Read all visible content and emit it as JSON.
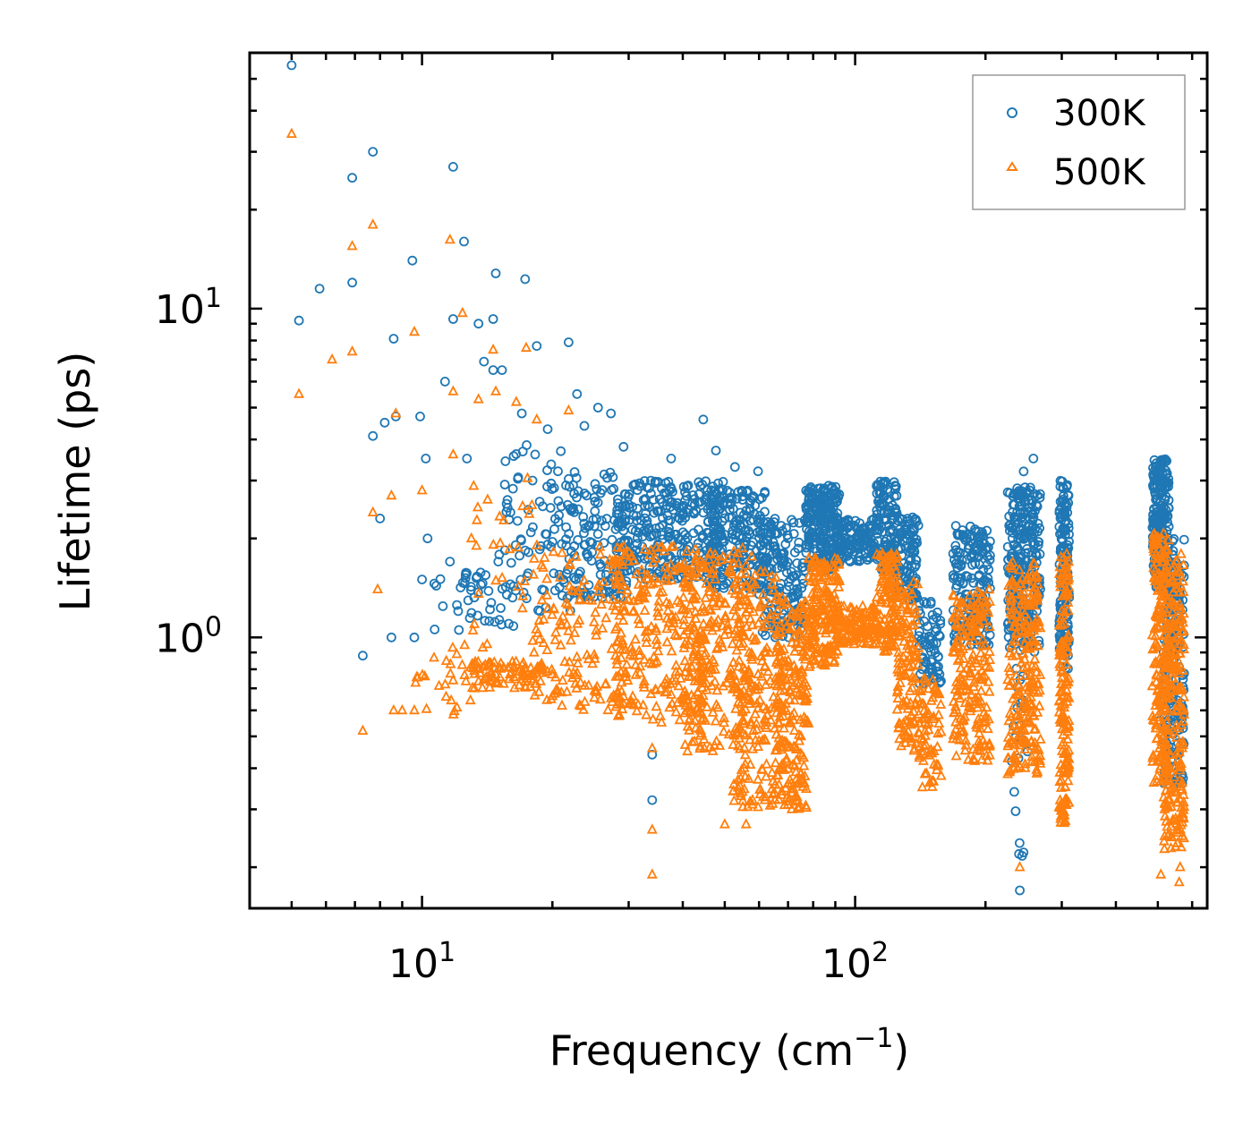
{
  "chart_data": {
    "type": "scatter",
    "title": "",
    "xlabel": "Frequency (cm",
    "xlabel_sup": "−1",
    "xlabel_end": ")",
    "ylabel": "Lifetime (ps)",
    "xscale": "log",
    "yscale": "log",
    "xlim": [
      4,
      650
    ],
    "ylim": [
      0.15,
      60
    ],
    "x_ticks": [
      {
        "value": 10,
        "base": "10",
        "exp": "1"
      },
      {
        "value": 100,
        "base": "10",
        "exp": "2"
      }
    ],
    "y_ticks": [
      {
        "value": 1,
        "base": "10",
        "exp": "0"
      },
      {
        "value": 10,
        "base": "10",
        "exp": "1"
      }
    ],
    "legend_position": "top-right",
    "series": [
      {
        "name": "300K",
        "marker": "circle",
        "color": "#1f77b4",
        "points": [
          [
            5.0,
            55.0
          ],
          [
            5.2,
            9.2
          ],
          [
            5.8,
            11.5
          ],
          [
            6.9,
            25.0
          ],
          [
            6.9,
            12.0
          ],
          [
            7.7,
            30.0
          ],
          [
            7.7,
            4.1
          ],
          [
            8.0,
            2.3
          ],
          [
            8.2,
            4.5
          ],
          [
            8.6,
            8.1
          ],
          [
            8.7,
            4.7
          ],
          [
            9.5,
            14.0
          ],
          [
            9.9,
            4.7
          ],
          [
            10.0,
            1.5
          ],
          [
            10.2,
            3.5
          ],
          [
            10.3,
            2.0
          ],
          [
            11.8,
            27.0
          ],
          [
            11.8,
            9.3
          ],
          [
            12.5,
            16.0
          ],
          [
            13.5,
            9.0
          ],
          [
            14.6,
            9.3
          ],
          [
            14.6,
            6.5
          ],
          [
            14.8,
            12.8
          ],
          [
            15.3,
            6.5
          ],
          [
            17.3,
            12.3
          ],
          [
            18.4,
            7.7
          ],
          [
            21.8,
            7.9
          ],
          [
            7.3,
            0.88
          ],
          [
            8.5,
            1.0
          ],
          [
            9.6,
            1.0
          ],
          [
            11.3,
            6.0
          ],
          [
            11.6,
            1.7
          ],
          [
            12.7,
            3.5
          ],
          [
            13.9,
            6.9
          ],
          [
            15.0,
            1.7
          ],
          [
            16.0,
            2.4
          ],
          [
            17.0,
            4.8
          ],
          [
            18.0,
            3.0
          ],
          [
            19.5,
            4.3
          ],
          [
            20.6,
            3.2
          ],
          [
            22.8,
            5.5
          ],
          [
            23.7,
            4.4
          ],
          [
            25.5,
            5.0
          ],
          [
            27.3,
            4.8
          ],
          [
            29.2,
            3.8
          ],
          [
            34.0,
            0.44
          ],
          [
            34.0,
            0.32
          ],
          [
            37.6,
            3.5
          ],
          [
            44.6,
            4.6
          ],
          [
            47.7,
            3.7
          ],
          [
            52.8,
            3.3
          ],
          [
            59.7,
            3.2
          ],
          [
            147.0,
            1.08
          ],
          [
            230.0,
            0.42
          ],
          [
            240.0,
            0.17
          ],
          [
            250.0,
            0.45
          ],
          [
            258.0,
            3.5
          ],
          [
            302.0,
            0.55
          ],
          [
            506.0,
            0.56
          ]
        ],
        "bands": [
          {
            "x0": 10.6,
            "x1": 16.5,
            "ylo": 1.05,
            "yhi": 1.6,
            "n": 45
          },
          {
            "x0": 15.0,
            "x1": 22.0,
            "ylo": 1.2,
            "yhi": 4.0,
            "n": 70
          },
          {
            "x0": 20.0,
            "x1": 30.0,
            "ylo": 1.3,
            "yhi": 3.2,
            "n": 140
          },
          {
            "x0": 28.0,
            "x1": 50.0,
            "ylo": 1.5,
            "yhi": 3.0,
            "n": 300
          },
          {
            "x0": 45.0,
            "x1": 62.0,
            "ylo": 1.4,
            "yhi": 2.8,
            "n": 200
          },
          {
            "x0": 60.0,
            "x1": 77.0,
            "ylo": 1.0,
            "yhi": 2.3,
            "n": 180
          },
          {
            "x0": 77.0,
            "x1": 92.0,
            "ylo": 1.6,
            "yhi": 2.9,
            "n": 220
          },
          {
            "x0": 90.0,
            "x1": 112.0,
            "ylo": 1.7,
            "yhi": 2.3,
            "n": 120
          },
          {
            "x0": 112.0,
            "x1": 125.0,
            "ylo": 1.6,
            "yhi": 3.0,
            "n": 120
          },
          {
            "x0": 125.0,
            "x1": 140.0,
            "ylo": 1.3,
            "yhi": 2.4,
            "n": 100
          },
          {
            "x0": 140.0,
            "x1": 158.0,
            "ylo": 0.7,
            "yhi": 1.3,
            "n": 70
          },
          {
            "x0": 168.0,
            "x1": 205.0,
            "ylo": 0.95,
            "yhi": 2.2,
            "n": 180
          },
          {
            "x0": 225.0,
            "x1": 268.0,
            "ylo": 0.9,
            "yhi": 2.9,
            "n": 240
          },
          {
            "x0": 232.0,
            "x1": 246.0,
            "ylo": 0.2,
            "yhi": 3.2,
            "n": 40
          },
          {
            "x0": 296.0,
            "x1": 312.0,
            "ylo": 0.8,
            "yhi": 3.0,
            "n": 160
          },
          {
            "x0": 485.0,
            "x1": 530.0,
            "ylo": 1.4,
            "yhi": 3.5,
            "n": 200
          },
          {
            "x0": 515.0,
            "x1": 575.0,
            "ylo": 0.35,
            "yhi": 2.0,
            "n": 200
          }
        ]
      },
      {
        "name": "500K",
        "marker": "triangle",
        "color": "#ff7f0e",
        "points": [
          [
            5.0,
            34.0
          ],
          [
            5.2,
            5.5
          ],
          [
            6.2,
            7.0
          ],
          [
            6.9,
            15.5
          ],
          [
            6.9,
            7.4
          ],
          [
            7.3,
            0.52
          ],
          [
            7.7,
            2.4
          ],
          [
            7.7,
            18.0
          ],
          [
            7.9,
            1.4
          ],
          [
            8.5,
            2.7
          ],
          [
            8.6,
            0.6
          ],
          [
            8.7,
            4.8
          ],
          [
            9.0,
            0.6
          ],
          [
            9.6,
            0.6
          ],
          [
            9.6,
            8.5
          ],
          [
            10.0,
            2.8
          ],
          [
            11.6,
            16.2
          ],
          [
            11.8,
            3.6
          ],
          [
            11.8,
            5.6
          ],
          [
            12.4,
            9.7
          ],
          [
            13.0,
            2.0
          ],
          [
            13.5,
            5.3
          ],
          [
            14.6,
            7.5
          ],
          [
            14.8,
            5.6
          ],
          [
            16.5,
            5.2
          ],
          [
            17.4,
            7.6
          ],
          [
            18.4,
            4.6
          ],
          [
            21.8,
            4.9
          ],
          [
            34.0,
            0.26
          ],
          [
            34.0,
            0.19
          ],
          [
            34.0,
            0.46
          ],
          [
            41.0,
            0.45
          ],
          [
            50.0,
            0.27
          ],
          [
            56.0,
            0.27
          ],
          [
            143.0,
            0.35
          ],
          [
            240.0,
            0.2
          ],
          [
            508.0,
            0.19
          ],
          [
            560.0,
            0.18
          ],
          [
            563.0,
            0.2
          ]
        ],
        "bands": [
          {
            "x0": 9.6,
            "x1": 13.0,
            "ylo": 0.58,
            "yhi": 0.95,
            "n": 25
          },
          {
            "x0": 12.8,
            "x1": 19.0,
            "ylo": 0.7,
            "yhi": 0.85,
            "n": 90
          },
          {
            "x0": 13.0,
            "x1": 19.0,
            "ylo": 0.9,
            "yhi": 3.2,
            "n": 30
          },
          {
            "x0": 18.0,
            "x1": 30.0,
            "ylo": 0.6,
            "yhi": 1.9,
            "n": 160
          },
          {
            "x0": 28.0,
            "x1": 48.0,
            "ylo": 0.55,
            "yhi": 1.9,
            "n": 280
          },
          {
            "x0": 40.0,
            "x1": 58.0,
            "ylo": 0.45,
            "yhi": 1.9,
            "n": 200
          },
          {
            "x0": 52.0,
            "x1": 68.0,
            "ylo": 0.3,
            "yhi": 1.6,
            "n": 220
          },
          {
            "x0": 66.0,
            "x1": 78.0,
            "ylo": 0.3,
            "yhi": 1.3,
            "n": 200
          },
          {
            "x0": 78.0,
            "x1": 92.0,
            "ylo": 0.8,
            "yhi": 1.75,
            "n": 180
          },
          {
            "x0": 90.0,
            "x1": 112.0,
            "ylo": 0.95,
            "yhi": 1.25,
            "n": 120
          },
          {
            "x0": 112.0,
            "x1": 125.0,
            "ylo": 0.9,
            "yhi": 1.8,
            "n": 120
          },
          {
            "x0": 125.0,
            "x1": 140.0,
            "ylo": 0.45,
            "yhi": 1.5,
            "n": 120
          },
          {
            "x0": 140.0,
            "x1": 158.0,
            "ylo": 0.35,
            "yhi": 0.75,
            "n": 70
          },
          {
            "x0": 168.0,
            "x1": 205.0,
            "ylo": 0.42,
            "yhi": 1.4,
            "n": 200
          },
          {
            "x0": 225.0,
            "x1": 268.0,
            "ylo": 0.38,
            "yhi": 1.7,
            "n": 240
          },
          {
            "x0": 296.0,
            "x1": 312.0,
            "ylo": 0.27,
            "yhi": 1.8,
            "n": 160
          },
          {
            "x0": 485.0,
            "x1": 530.0,
            "ylo": 0.35,
            "yhi": 2.1,
            "n": 200
          },
          {
            "x0": 515.0,
            "x1": 575.0,
            "ylo": 0.22,
            "yhi": 1.8,
            "n": 220
          }
        ]
      }
    ]
  }
}
